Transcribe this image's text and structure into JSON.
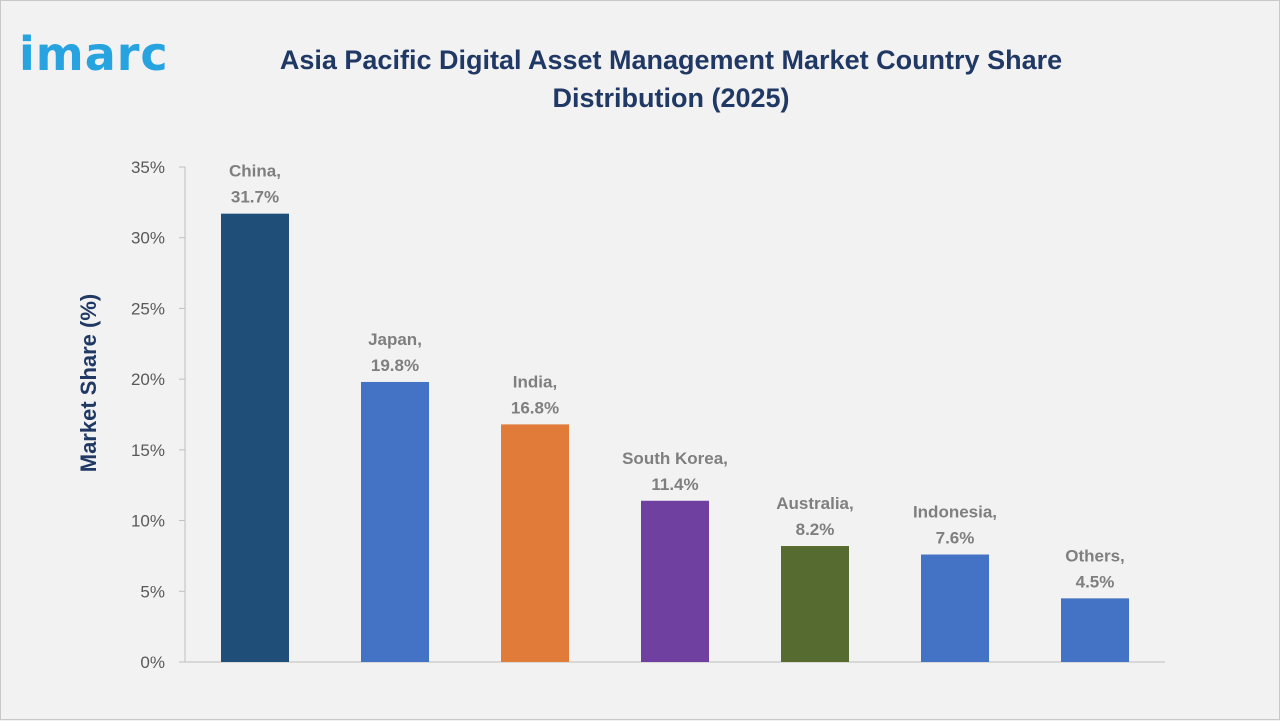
{
  "logo": {
    "text": "imarc",
    "color": "#27a3e0"
  },
  "colors": {
    "title": "#203864",
    "axis": "#bfbfbf",
    "tick_text": "#595959",
    "data_label": "#7f7f7f"
  },
  "chart_data": {
    "type": "bar",
    "title": "Asia Pacific Digital Asset Management Market Country Share Distribution (2025)",
    "xlabel": "",
    "ylabel": "Market Share (%)",
    "ylim": [
      0,
      35
    ],
    "yticks": [
      0,
      5,
      10,
      15,
      20,
      25,
      30,
      35
    ],
    "ytick_labels": [
      "0%",
      "5%",
      "10%",
      "15%",
      "20%",
      "25%",
      "30%",
      "35%"
    ],
    "grid": false,
    "legend": "none",
    "categories": [
      "China",
      "Japan",
      "India",
      "South Korea",
      "Australia",
      "Indonesia",
      "Others"
    ],
    "values": [
      31.7,
      19.8,
      16.8,
      11.4,
      8.2,
      7.6,
      4.5
    ],
    "data_labels": [
      [
        "China,",
        "31.7%"
      ],
      [
        "Japan,",
        "19.8%"
      ],
      [
        "India,",
        "16.8%"
      ],
      [
        "South Korea,",
        "11.4%"
      ],
      [
        "Australia,",
        "8.2%"
      ],
      [
        "Indonesia,",
        "7.6%"
      ],
      [
        "Others,",
        "4.5%"
      ]
    ],
    "bar_colors": [
      "#1f4e79",
      "#4472c4",
      "#e07b39",
      "#7040a0",
      "#556b2f",
      "#4472c4",
      "#4472c4"
    ]
  }
}
